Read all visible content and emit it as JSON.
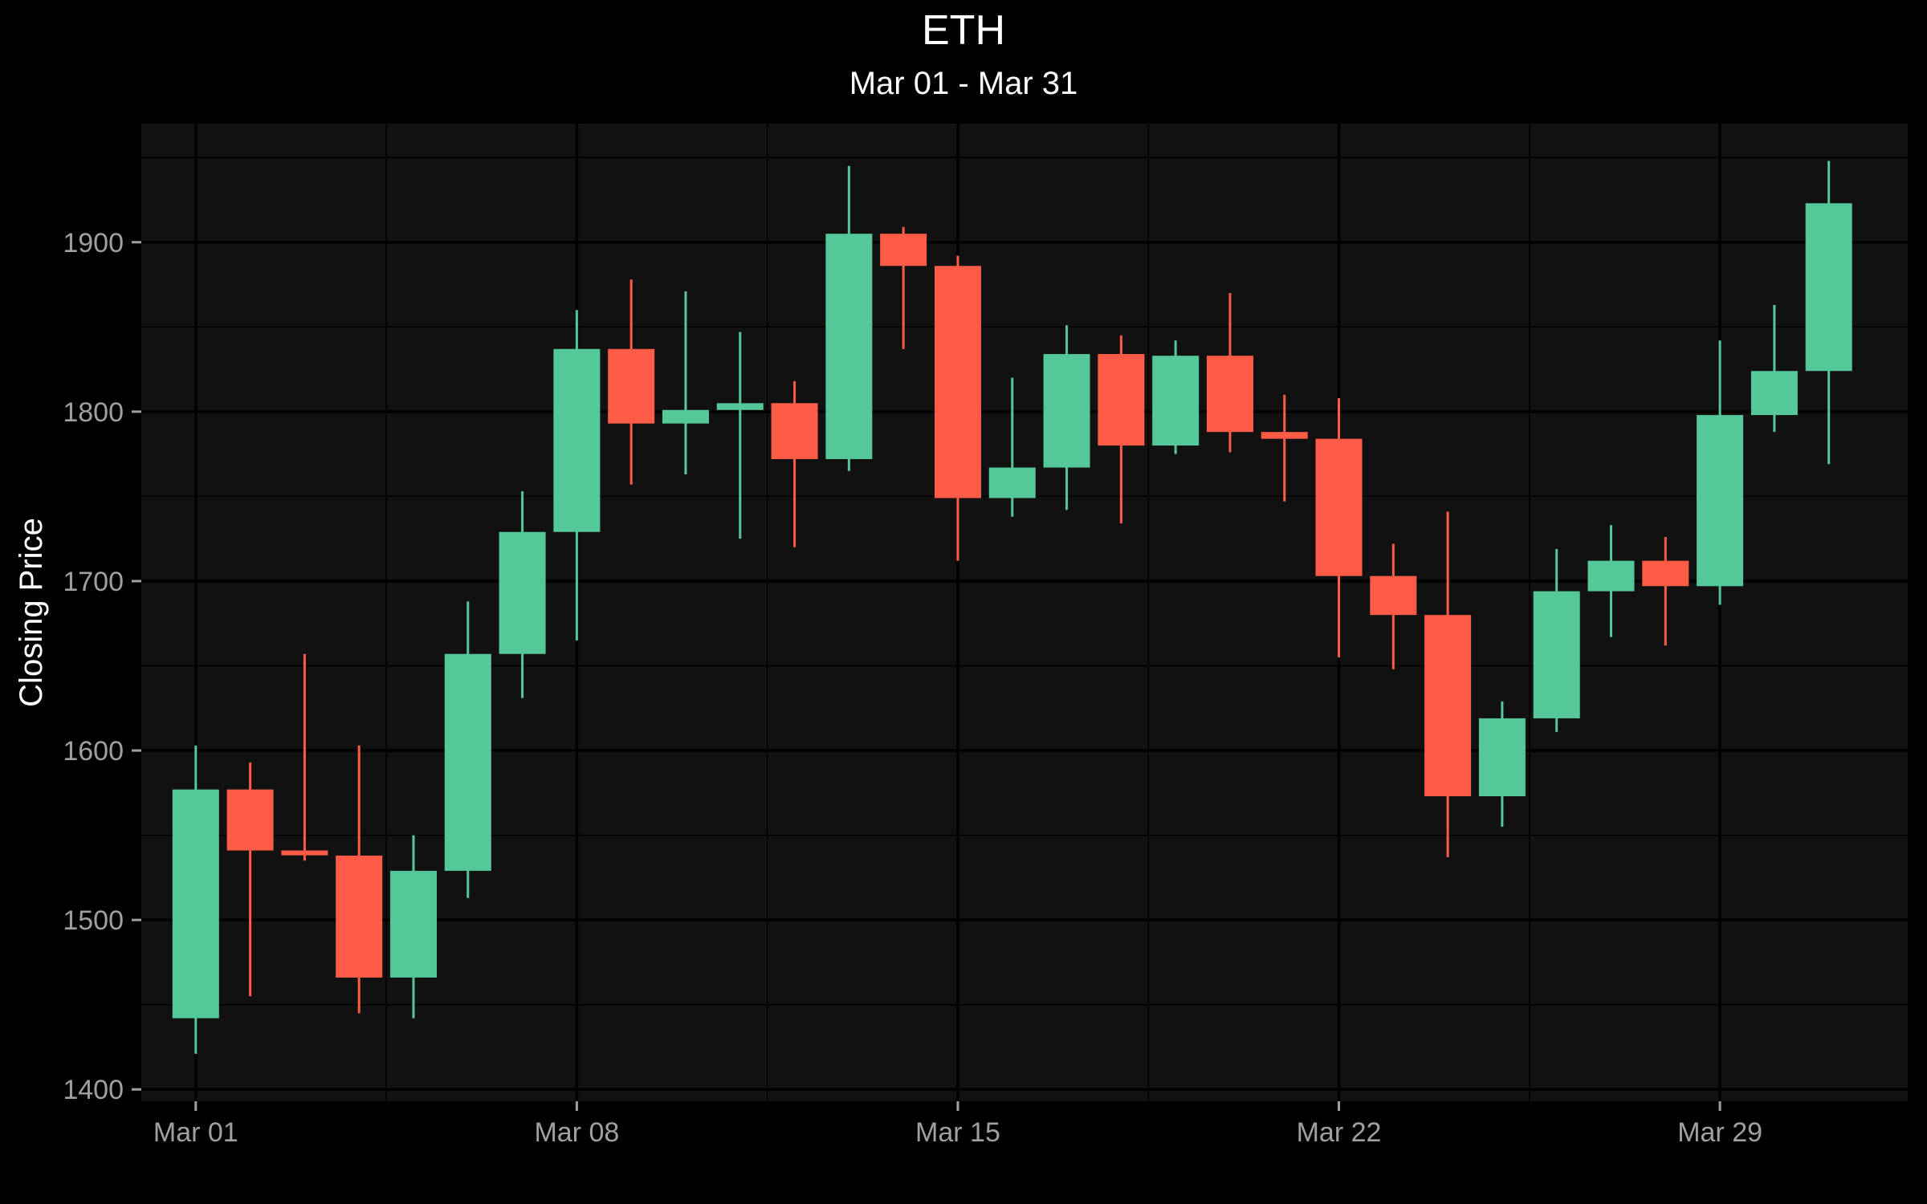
{
  "chart_data": {
    "type": "candlestick",
    "title": "ETH",
    "subtitle": "Mar 01 - Mar 31",
    "xlabel": "",
    "ylabel": "Closing Price",
    "ylim": [
      1393,
      1970
    ],
    "yticks": [
      1400,
      1500,
      1600,
      1700,
      1800,
      1900
    ],
    "xtick_labels": [
      {
        "day": 1,
        "label": "Mar 01"
      },
      {
        "day": 8,
        "label": "Mar 08"
      },
      {
        "day": 15,
        "label": "Mar 15"
      },
      {
        "day": 22,
        "label": "Mar 22"
      },
      {
        "day": 29,
        "label": "Mar 29"
      }
    ],
    "colors": {
      "up": "#55c89a",
      "down": "#ff5c47",
      "panel": "#111111",
      "grid": "#000000",
      "background": "#000000"
    },
    "candles": [
      {
        "day": 1,
        "open": 1442,
        "close": 1577,
        "high": 1603,
        "low": 1421
      },
      {
        "day": 2,
        "open": 1577,
        "close": 1541,
        "high": 1593,
        "low": 1455
      },
      {
        "day": 3,
        "open": 1541,
        "close": 1539,
        "high": 1657,
        "low": 1535
      },
      {
        "day": 4,
        "open": 1538,
        "close": 1466,
        "high": 1603,
        "low": 1445
      },
      {
        "day": 5,
        "open": 1466,
        "close": 1529,
        "high": 1550,
        "low": 1442
      },
      {
        "day": 6,
        "open": 1529,
        "close": 1657,
        "high": 1688,
        "low": 1513
      },
      {
        "day": 7,
        "open": 1657,
        "close": 1729,
        "high": 1753,
        "low": 1631
      },
      {
        "day": 8,
        "open": 1729,
        "close": 1837,
        "high": 1860,
        "low": 1665
      },
      {
        "day": 9,
        "open": 1837,
        "close": 1793,
        "high": 1878,
        "low": 1757
      },
      {
        "day": 10,
        "open": 1793,
        "close": 1801,
        "high": 1871,
        "low": 1763
      },
      {
        "day": 11,
        "open": 1801,
        "close": 1805,
        "high": 1847,
        "low": 1725
      },
      {
        "day": 12,
        "open": 1805,
        "close": 1772,
        "high": 1818,
        "low": 1720
      },
      {
        "day": 13,
        "open": 1772,
        "close": 1905,
        "high": 1945,
        "low": 1765
      },
      {
        "day": 14,
        "open": 1905,
        "close": 1886,
        "high": 1909,
        "low": 1837
      },
      {
        "day": 15,
        "open": 1886,
        "close": 1749,
        "high": 1892,
        "low": 1712
      },
      {
        "day": 16,
        "open": 1749,
        "close": 1767,
        "high": 1820,
        "low": 1738
      },
      {
        "day": 17,
        "open": 1767,
        "close": 1834,
        "high": 1851,
        "low": 1742
      },
      {
        "day": 18,
        "open": 1834,
        "close": 1780,
        "high": 1845,
        "low": 1734
      },
      {
        "day": 19,
        "open": 1780,
        "close": 1833,
        "high": 1842,
        "low": 1775
      },
      {
        "day": 20,
        "open": 1833,
        "close": 1788,
        "high": 1870,
        "low": 1776
      },
      {
        "day": 21,
        "open": 1788,
        "close": 1784,
        "high": 1810,
        "low": 1747
      },
      {
        "day": 22,
        "open": 1784,
        "close": 1703,
        "high": 1808,
        "low": 1655
      },
      {
        "day": 23,
        "open": 1703,
        "close": 1680,
        "high": 1722,
        "low": 1648
      },
      {
        "day": 24,
        "open": 1680,
        "close": 1573,
        "high": 1741,
        "low": 1537
      },
      {
        "day": 25,
        "open": 1573,
        "close": 1619,
        "high": 1629,
        "low": 1555
      },
      {
        "day": 26,
        "open": 1619,
        "close": 1694,
        "high": 1719,
        "low": 1611
      },
      {
        "day": 27,
        "open": 1694,
        "close": 1712,
        "high": 1733,
        "low": 1667
      },
      {
        "day": 28,
        "open": 1712,
        "close": 1697,
        "high": 1726,
        "low": 1662
      },
      {
        "day": 29,
        "open": 1697,
        "close": 1798,
        "high": 1842,
        "low": 1686
      },
      {
        "day": 30,
        "open": 1798,
        "close": 1824,
        "high": 1863,
        "low": 1788
      },
      {
        "day": 31,
        "open": 1824,
        "close": 1923,
        "high": 1948,
        "low": 1769
      }
    ]
  }
}
